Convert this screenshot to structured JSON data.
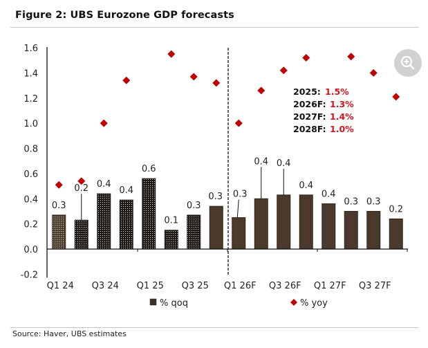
{
  "figure": {
    "title": "Figure 2: UBS Eurozone GDP forecasts",
    "source": "Source: Haver, UBS estimates",
    "zoom_icon": "zoom-in-magnifier-icon"
  },
  "colors": {
    "bar_actual": "#1e1a17",
    "bar_actual_first": "#4a3a2c",
    "bar_forecast": "#4b3a2c",
    "yoy_marker": "#c00000",
    "annotation_value": "#d4131b"
  },
  "chart_data": {
    "type": "bar",
    "title": "Figure 2: UBS Eurozone GDP forecasts",
    "xlabel": "",
    "ylabel": "",
    "ylim": [
      -0.2,
      1.6
    ],
    "yticks": [
      "1.6",
      "1.4",
      "1.2",
      "1.0",
      "0.8",
      "0.6",
      "0.4",
      "0.2",
      "0.0",
      "-0.2"
    ],
    "ytick_values": [
      1.6,
      1.4,
      1.2,
      1.0,
      0.8,
      0.6,
      0.4,
      0.2,
      0.0,
      -0.2
    ],
    "grid": false,
    "categories": [
      "Q1 24",
      "Q2 24",
      "Q3 24",
      "Q4 24",
      "Q1 25",
      "Q2 25",
      "Q3 25",
      "Q4 25",
      "Q1 26F",
      "Q2 26F",
      "Q3 26F",
      "Q4 26F",
      "Q1 27F",
      "Q2 27F",
      "Q3 27F",
      "Q4 27F"
    ],
    "xtick_labels": [
      "Q1 24",
      "Q3 24",
      "Q1 25",
      "Q3 25",
      "Q1 26F",
      "Q3 26F",
      "Q1 27F",
      "Q3 27F"
    ],
    "forecast_divider_after": "Q4 25",
    "series": [
      {
        "name": "% qoq",
        "type": "bar",
        "values": [
          0.27,
          0.23,
          0.44,
          0.39,
          0.56,
          0.15,
          0.27,
          0.34,
          0.25,
          0.4,
          0.43,
          0.43,
          0.36,
          0.3,
          0.3,
          0.24
        ],
        "labels": [
          "0.3",
          "0.2",
          "0.4",
          "0.4",
          "0.6",
          "0.1",
          "0.3",
          "0.3",
          "0.3",
          "0.4",
          "0.4",
          "0.4",
          "0.4",
          "0.3",
          "0.3",
          "0.2"
        ],
        "style": [
          "light-pattern",
          "dotted",
          "dotted",
          "dotted",
          "dotted",
          "dotted",
          "dotted",
          "solid",
          "solid",
          "solid",
          "solid",
          "solid",
          "solid",
          "solid",
          "solid",
          "solid"
        ]
      },
      {
        "name": "% yoy",
        "type": "scatter",
        "marker": "diamond",
        "values": [
          0.51,
          0.54,
          1.0,
          1.34,
          null,
          1.55,
          1.37,
          1.32,
          1.0,
          1.26,
          1.42,
          1.52,
          null,
          1.53,
          1.4,
          1.21
        ]
      }
    ],
    "legend": {
      "placement": "bottom",
      "entries": [
        "% qoq",
        "% yoy"
      ]
    },
    "annotations": [
      {
        "key": "2025:",
        "value": "1.5%"
      },
      {
        "key": "2026F:",
        "value": "1.3%"
      },
      {
        "key": "2027F:",
        "value": "1.4%"
      },
      {
        "key": "2028F:",
        "value": "1.0%"
      }
    ]
  }
}
